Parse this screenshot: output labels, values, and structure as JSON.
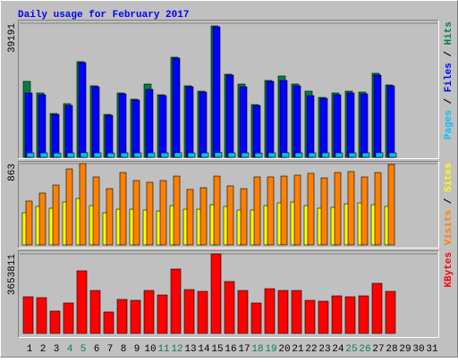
{
  "chart_data": [
    {
      "type": "bar",
      "title": "Daily usage for February 2017",
      "ylim": [
        0,
        39191
      ],
      "yticks": [
        39191
      ],
      "legend_separator": " / ",
      "series": [
        {
          "name": "Hits",
          "color": "#008040",
          "values": [
            22208,
            18812,
            12802,
            15676,
            27956,
            20902,
            12541,
            18812,
            16983,
            21425,
            18289,
            29262,
            20902,
            19334,
            38407,
            24298,
            21425,
            15415,
            22470,
            23776,
            21425,
            19334,
            17505,
            18812,
            19334,
            19073,
            24560,
            21164,
            null,
            null,
            null
          ]
        },
        {
          "name": "Files",
          "color": "#0000ff",
          "values": [
            18812,
            18289,
            12541,
            15154,
            27695,
            20641,
            12280,
            18550,
            16721,
            19857,
            18028,
            29001,
            20641,
            19073,
            38146,
            24037,
            20641,
            15154,
            22208,
            22470,
            20902,
            18028,
            17244,
            18289,
            18812,
            18550,
            24037,
            20902,
            null,
            null,
            null
          ]
        },
        {
          "name": "Pages",
          "color": "#00c0ff",
          "values": [
            1300,
            1300,
            1250,
            1300,
            1350,
            1300,
            1250,
            1300,
            1300,
            1300,
            1300,
            1350,
            1300,
            1300,
            1400,
            1300,
            1300,
            1250,
            1300,
            1350,
            1300,
            1300,
            1300,
            1300,
            1300,
            1300,
            1350,
            1300,
            null,
            null,
            null
          ]
        }
      ]
    },
    {
      "type": "bar",
      "ylim": [
        0,
        863
      ],
      "yticks": [
        863
      ],
      "legend_separator": " / ",
      "series": [
        {
          "name": "Sites",
          "color": "#ffff00",
          "values": [
            341,
            408,
            389,
            455,
            493,
            417,
            341,
            379,
            379,
            370,
            360,
            417,
            379,
            379,
            427,
            408,
            370,
            370,
            417,
            446,
            455,
            417,
            389,
            398,
            436,
            446,
            427,
            408,
            null,
            null,
            null
          ]
        },
        {
          "name": "Visits",
          "color": "#ff8000",
          "values": [
            465,
            550,
            635,
            806,
            863,
            721,
            597,
            768,
            683,
            664,
            683,
            730,
            588,
            607,
            730,
            626,
            597,
            721,
            721,
            730,
            740,
            759,
            711,
            768,
            778,
            721,
            768,
            853,
            null,
            null,
            null
          ]
        }
      ]
    },
    {
      "type": "bar",
      "ylim": [
        0,
        3653811
      ],
      "yticks": [
        3653811
      ],
      "categories": [
        "1",
        "2",
        "3",
        "4",
        "5",
        "6",
        "7",
        "8",
        "9",
        "10",
        "11",
        "12",
        "13",
        "14",
        "15",
        "16",
        "17",
        "18",
        "19",
        "20",
        "21",
        "22",
        "23",
        "24",
        "25",
        "26",
        "27",
        "28",
        "29",
        "30",
        "31"
      ],
      "category_colors": [
        "#000000",
        "#000000",
        "#000000",
        "#00805c",
        "#00805c",
        "#000000",
        "#000000",
        "#000000",
        "#000000",
        "#000000",
        "#00805c",
        "#00805c",
        "#000000",
        "#000000",
        "#000000",
        "#000000",
        "#000000",
        "#00805c",
        "#00805c",
        "#000000",
        "#000000",
        "#000000",
        "#000000",
        "#000000",
        "#00805c",
        "#00805c",
        "#000000",
        "#000000",
        "#000000",
        "#000000",
        "#000000"
      ],
      "series": [
        {
          "name": "KBytes",
          "color": "#ff0000",
          "values": [
            1683214,
            1642160,
            1026350,
            1395836,
            2873780,
            1970592,
            985296,
            1560052,
            1518998,
            1970592,
            1765322,
            2955888,
            2011646,
            1929538,
            3653811,
            2381132,
            1970592,
            1395836,
            2052700,
            1970592,
            1970592,
            1518998,
            1477944,
            1724268,
            1683214,
            1724268,
            2299024,
            1929538,
            null,
            null,
            null
          ]
        }
      ]
    }
  ]
}
